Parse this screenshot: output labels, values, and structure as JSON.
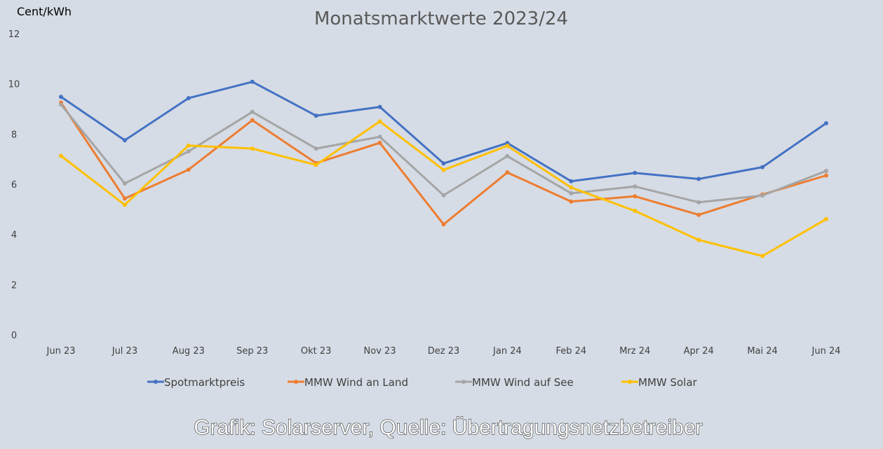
{
  "chart_data": {
    "type": "line",
    "title": "Monatsmarktwerte 2023/24",
    "ylabel": "Cent/kWh",
    "xlabel": "",
    "categories": [
      "Jun 23",
      "Jul 23",
      "Aug 23",
      "Sep 23",
      "Okt 23",
      "Nov 23",
      "Dez 23",
      "Jan 24",
      "Feb 24",
      "Mrz 24",
      "Apr 24",
      "Mai 24",
      "Jun 24"
    ],
    "ylim": [
      0,
      12
    ],
    "yticks": [
      "0",
      "2",
      "4",
      "6",
      "8",
      "10",
      "12"
    ],
    "grid": false,
    "legend_position": "bottom",
    "series": [
      {
        "name": "Spotmarktpreis",
        "color": "#4472c4",
        "values": [
          9.48,
          7.75,
          9.43,
          10.08,
          8.73,
          9.08,
          6.83,
          7.64,
          6.12,
          6.45,
          6.21,
          6.68,
          8.43
        ]
      },
      {
        "name": "MMW Wind an Land",
        "color": "#ed7d31",
        "values": [
          9.25,
          5.43,
          6.58,
          8.55,
          6.84,
          7.65,
          4.4,
          6.47,
          5.31,
          5.52,
          4.78,
          5.59,
          6.35
        ]
      },
      {
        "name": "MMW Wind auf See",
        "color": "#a5a5a5",
        "values": [
          9.17,
          6.03,
          7.31,
          8.88,
          7.42,
          7.89,
          5.56,
          7.12,
          5.64,
          5.91,
          5.28,
          5.55,
          6.53
        ]
      },
      {
        "name": "MMW Solar",
        "color": "#ffc000",
        "values": [
          7.13,
          5.18,
          7.54,
          7.42,
          6.77,
          8.5,
          6.57,
          7.53,
          5.87,
          4.94,
          3.78,
          3.14,
          4.61
        ]
      }
    ]
  },
  "source_caption": "Grafik: Solarserver, Quelle: Übertragungsnetzbetreiber"
}
